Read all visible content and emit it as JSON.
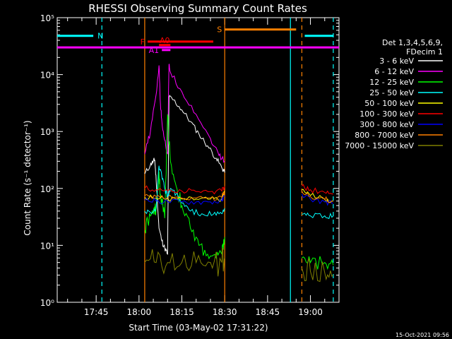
{
  "chart_data": {
    "type": "line",
    "title": "RHESSI Observing Summary Count Rates",
    "xlabel": "Start Time (03-May-02 17:31:22)",
    "ylabel": "Count Rate (s⁻¹ detector⁻¹)",
    "yscale": "log",
    "ylim": [
      1,
      100000
    ],
    "xlim": [
      "17:31:22",
      "19:10:00"
    ],
    "x_ticks": [
      "17:45",
      "18:00",
      "18:15",
      "18:30",
      "18:45",
      "19:00"
    ],
    "y_ticks": [
      "10⁰",
      "10¹",
      "10²",
      "10³",
      "10⁴",
      "10⁵"
    ],
    "legend_title": [
      "Det 1,3,4,5,6,9,",
      "FDecim 1"
    ],
    "legend_position": "right",
    "footer_date": "15-Oct-2021 09:56",
    "data_gaps": [
      [
        "17:31:22",
        "18:02"
      ],
      [
        "18:30",
        "18:57"
      ]
    ],
    "series": [
      {
        "name": "3 - 6 keV",
        "color": "#ffffff",
        "points": [
          [
            "18:02",
            180
          ],
          [
            "18:04",
            260
          ],
          [
            "18:05",
            300
          ],
          [
            "18:05.5",
            320
          ],
          [
            "18:06",
            140
          ],
          [
            "18:07",
            20
          ],
          [
            "18:08",
            12
          ],
          [
            "18:09",
            9
          ],
          [
            "18:10",
            7
          ],
          [
            "18:10.5",
            4000
          ],
          [
            "18:12",
            3600
          ],
          [
            "18:15",
            2400
          ],
          [
            "18:18",
            1500
          ],
          [
            "18:21",
            900
          ],
          [
            "18:24",
            560
          ],
          [
            "18:27",
            340
          ],
          [
            "18:29",
            230
          ],
          [
            "18:30",
            190
          ]
        ]
      },
      {
        "name": "6 - 12 keV",
        "color": "#ff00ff",
        "points": [
          [
            "18:02",
            400
          ],
          [
            "18:04",
            1000
          ],
          [
            "18:06",
            4500
          ],
          [
            "18:07",
            14500
          ],
          [
            "18:07.5",
            3000
          ],
          [
            "18:08",
            1500
          ],
          [
            "18:09",
            700
          ],
          [
            "18:10",
            400
          ],
          [
            "18:10.5",
            15000
          ],
          [
            "18:11",
            11000
          ],
          [
            "18:15",
            5000
          ],
          [
            "18:20",
            2000
          ],
          [
            "18:25",
            750
          ],
          [
            "18:28",
            380
          ],
          [
            "18:30",
            300
          ]
        ]
      },
      {
        "name": "12 - 25 keV",
        "color": "#00ff00",
        "points": [
          [
            "18:02",
            18
          ],
          [
            "18:03",
            28
          ],
          [
            "18:05",
            35
          ],
          [
            "18:06",
            45
          ],
          [
            "18:07",
            200
          ],
          [
            "18:07.5",
            70
          ],
          [
            "18:08",
            60
          ],
          [
            "18:09",
            30
          ],
          [
            "18:10",
            2000
          ],
          [
            "18:11",
            300
          ],
          [
            "18:13",
            110
          ],
          [
            "18:15",
            50
          ],
          [
            "18:18",
            20
          ],
          [
            "18:21",
            10
          ],
          [
            "18:24",
            7
          ],
          [
            "18:27",
            6
          ],
          [
            "18:29",
            7
          ],
          [
            "18:30",
            14
          ],
          [
            "18:57",
            6
          ],
          [
            "19:00",
            5
          ],
          [
            "19:05",
            5
          ],
          [
            "19:08",
            4.5
          ]
        ]
      },
      {
        "name": "25 - 50 keV",
        "color": "#00ffff",
        "points": [
          [
            "18:02",
            40
          ],
          [
            "18:04",
            38
          ],
          [
            "18:06",
            45
          ],
          [
            "18:07",
            250
          ],
          [
            "18:08",
            160
          ],
          [
            "18:09",
            100
          ],
          [
            "18:10",
            70
          ],
          [
            "18:11",
            100
          ],
          [
            "18:13",
            80
          ],
          [
            "18:15",
            55
          ],
          [
            "18:18",
            40
          ],
          [
            "18:22",
            36
          ],
          [
            "18:26",
            35
          ],
          [
            "18:29",
            36
          ],
          [
            "18:30",
            45
          ],
          [
            "18:57",
            35
          ],
          [
            "19:00",
            33
          ],
          [
            "19:05",
            33
          ],
          [
            "19:08",
            33
          ]
        ]
      },
      {
        "name": "50 - 100 keV",
        "color": "#ffff00",
        "points": [
          [
            "18:02",
            70
          ],
          [
            "18:06",
            68
          ],
          [
            "18:10",
            66
          ],
          [
            "18:15",
            65
          ],
          [
            "18:20",
            65
          ],
          [
            "18:25",
            65
          ],
          [
            "18:29",
            66
          ],
          [
            "18:30",
            90
          ],
          [
            "18:57",
            95
          ],
          [
            "19:00",
            75
          ],
          [
            "19:05",
            65
          ],
          [
            "19:08",
            60
          ]
        ]
      },
      {
        "name": "100 - 300 keV",
        "color": "#ff0000",
        "points": [
          [
            "18:02",
            100
          ],
          [
            "18:06",
            95
          ],
          [
            "18:10",
            92
          ],
          [
            "18:15",
            90
          ],
          [
            "18:20",
            88
          ],
          [
            "18:25",
            88
          ],
          [
            "18:29",
            90
          ],
          [
            "18:30",
            110
          ],
          [
            "18:57",
            110
          ],
          [
            "19:00",
            95
          ],
          [
            "19:05",
            85
          ],
          [
            "19:08",
            80
          ]
        ]
      },
      {
        "name": "300 - 800 keV",
        "color": "#0000ff",
        "points": [
          [
            "18:02",
            62
          ],
          [
            "18:06",
            60
          ],
          [
            "18:10",
            59
          ],
          [
            "18:15",
            58
          ],
          [
            "18:20",
            58
          ],
          [
            "18:25",
            58
          ],
          [
            "18:29",
            60
          ],
          [
            "18:30",
            75
          ],
          [
            "18:57",
            80
          ],
          [
            "19:00",
            65
          ],
          [
            "19:05",
            58
          ],
          [
            "19:08",
            55
          ]
        ]
      },
      {
        "name": "800 - 7000 keV",
        "color": "#ff8000",
        "points": [
          [
            "18:02",
            75
          ],
          [
            "18:06",
            72
          ],
          [
            "18:10",
            70
          ],
          [
            "18:15",
            68
          ],
          [
            "18:20",
            68
          ],
          [
            "18:25",
            68
          ],
          [
            "18:29",
            70
          ],
          [
            "18:30",
            88
          ],
          [
            "18:57",
            90
          ],
          [
            "19:00",
            72
          ],
          [
            "19:05",
            64
          ],
          [
            "19:08",
            60
          ]
        ]
      },
      {
        "name": "7000 - 15000 keV",
        "color": "#808000",
        "points": [
          [
            "18:02",
            5
          ],
          [
            "18:06",
            5
          ],
          [
            "18:10",
            5
          ],
          [
            "18:15",
            5
          ],
          [
            "18:20",
            5
          ],
          [
            "18:25",
            5
          ],
          [
            "18:29",
            5
          ],
          [
            "18:30",
            6
          ],
          [
            "18:57",
            4
          ],
          [
            "19:00",
            3.5
          ],
          [
            "19:05",
            3.3
          ],
          [
            "19:08",
            3
          ]
        ]
      }
    ],
    "status_bars": [
      {
        "label": "N",
        "color": "#00ffff",
        "segments": [
          [
            "17:31:22",
            "17:44"
          ],
          [
            "18:58",
            "19:08"
          ]
        ]
      },
      {
        "label": "S",
        "color": "#ff8000",
        "segments": [
          [
            "18:30",
            "18:55"
          ]
        ]
      },
      {
        "label": "F",
        "color": "#ff0000",
        "segments": [
          [
            "18:03",
            "18:26"
          ]
        ]
      },
      {
        "label": "A0",
        "color": "#ff0000",
        "segments": [
          [
            "18:07",
            "18:11"
          ]
        ]
      },
      {
        "label": "A1",
        "color": "#ff00ff",
        "segments": [
          [
            "18:08",
            "18:11"
          ]
        ]
      }
    ],
    "magenta_line_level": 30000,
    "vertical_markers": [
      {
        "time": "17:47",
        "color": "#00ffff",
        "style": "dashed"
      },
      {
        "time": "18:02",
        "color": "#ff8000",
        "style": "solid"
      },
      {
        "time": "18:30",
        "color": "#ff8000",
        "style": "solid"
      },
      {
        "time": "18:53",
        "color": "#00ffff",
        "style": "solid"
      },
      {
        "time": "18:57",
        "color": "#ff8000",
        "style": "dashed"
      },
      {
        "time": "19:08",
        "color": "#00ffff",
        "style": "dashed"
      }
    ]
  }
}
